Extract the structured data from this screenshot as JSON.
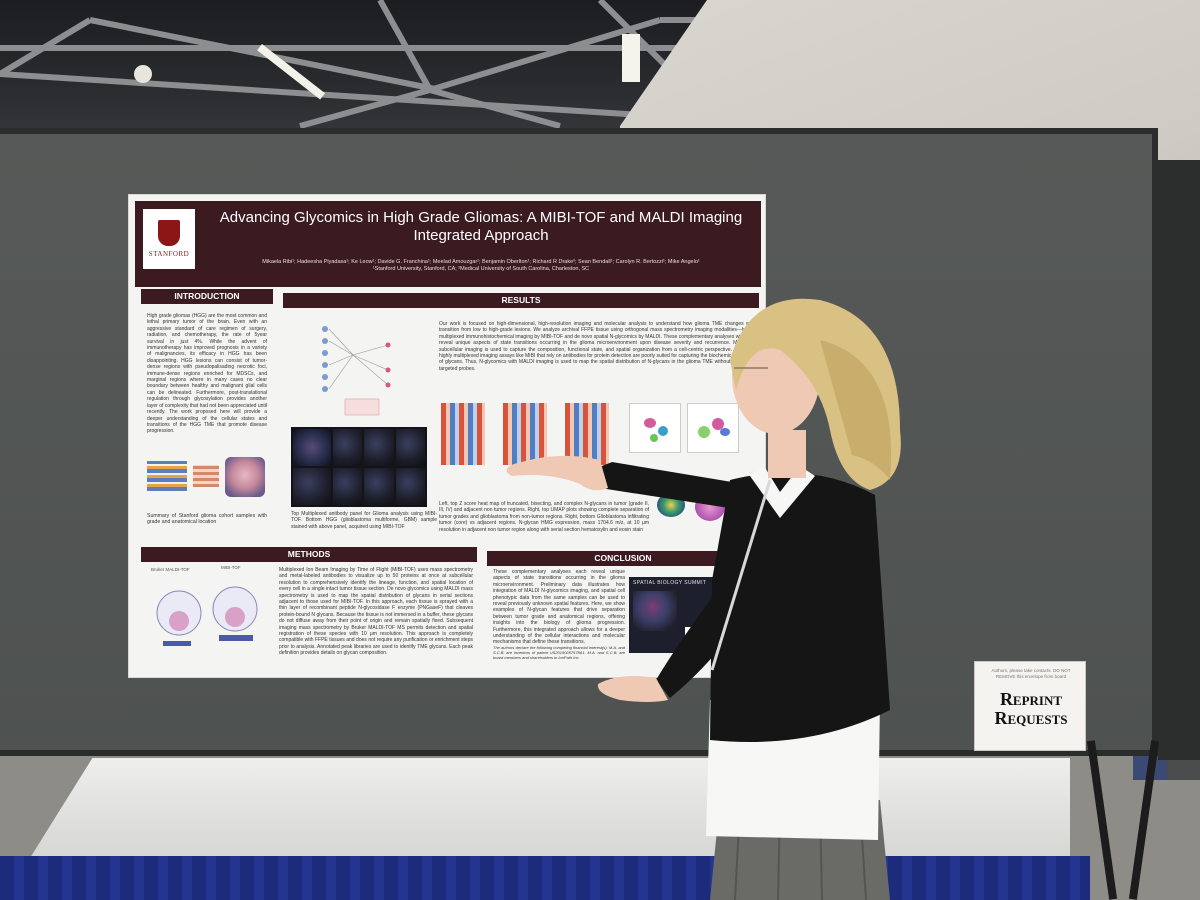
{
  "poster": {
    "title": "Advancing Glycomics in High Grade Gliomas: A MIBI-TOF and MALDI Imaging Integrated Approach",
    "authors": "Mikaela Ribi¹; Hadeesha Piyadasa¹; Ke Leow¹; Davide G. Franchina¹; Meelad Amouzgar¹; Benjamin Oberlton¹; Richard R Drake²; Sean Bendall¹; Carolyn R. Bertozzi¹; Mike Angelo¹",
    "affiliations": "¹Stanford University, Stanford, CA; ²Medical University of South Carolina, Charleston, SC",
    "logo_text": "STANFORD",
    "sections": {
      "introduction": "INTRODUCTION",
      "results": "RESULTS",
      "methods": "METHODS",
      "conclusion": "CONCLUSION"
    },
    "intro_text": "High grade gliomas (HGG) are the most common and lethal primary tumor of the brain. Even with an aggressive standard of care regimen of surgery, radiation, and chemotherapy, the rate of 5year survival in just 4%. While the advent of immunotherapy has improved prognosis in a variety of malignancies, its efficacy in HGG has been disappointing. HGG lesions can consist of tumor-dense regions with pseudopalisading necrotic foci, immune-dense regions enriched for MDSCs, and marginal regions where in many cases no clear boundary between healthy and malignant glial cells can be delineated. Furthermore, post-translational regulation through glycosylation provides another layer of complexity that had not been appreciated until recently. The work proposed here will provide a deeper understanding of the cellular states and transitions of the HGG TME that promote disease progression.",
    "intro_caption": "Summary of Stanford glioma cohort samples with grade and anatomical location",
    "results_text": "Our work is focused on high-dimensional, high-resolution imaging and molecular analysis to understand how glioma TME changes with transition from low to high-grade lesions. We analyze archival FFPE tissue using orthogonal mass spectrometry imaging modalities—highly multiplexed immunohistochemical imaging by MIBI-TOF and de novo spatial N-glycomics by MALDI. These complementary analyses will each reveal unique aspects of state transitions occurring in the glioma microenvironment upon disease severity and recurrence. MIBI-TOF subcellular imaging is used to capture the composition, functional state, and spatial organization from a cell-centric perspective. However, highly multiplexed imaging assays like MIBI that rely on antibodies for protein detection are poorly suited for capturing the biochemical diversity of glycans. Thus, N-glycomics with MALDI imaging is used to map the spatial distribution of N-glycans in the glioma TME without the use of targeted probes.",
    "results_caption_left": "Top Multiplexed antibody panel for Glioma analysis using MIBI-TOF. Bottom HGG (glioblastoma multiforme, GBM) sample stained with above panel, acquired using MIBI-TOF",
    "results_caption_right": "Left, top Z score heat map of truncated, bisecting, and complex N-glycans in tumor (grade II, III, IV) and adjacent non tumor regions. Right, top UMAP plots showing complete separation of tumor grades and glioblastoma from non-tumor regions. Right, bottom Glioblastoma infiltrating tumor (core) vs adjacent regions. N-glycan HMG expression, mass 1704.6 m/z, at 10 µm resolution in adjacent non tumor region along with serial section hematoxylin and eosin stain",
    "methods_text": "Multiplexed Ion Beam Imaging by Time of Flight (MIBI-TOF) uses mass spectrometry and metal-labeled antibodies to visualize up to 50 proteins at once at subcellular resolution to comprehensively identify the lineage, function, and spatial location of every cell in a single intact tumor tissue section. De novo glycomics using MALDI mass spectrometry is used to map the spatial distribution of glycans in serial sections adjacent to those used for MIBI-TOF. In this approach, each tissue is sprayed with a thin layer of recombinant peptide N-glycosidase F enzyme (PNGaseF) that cleaves protein-bound N glycans. Because the tissue is not immersed in a buffer, these glycans do not diffuse away from their point of origin and remain spatially fixed. Subsequent imaging mass spectrometry by Bruker MALDI-TOF MS permits detection and spatial registration of these species with 10 µm resolution. This approach is completely compatible with FFPE tissues and does not require any purification or enrichment steps prior to analysis. Annotated peak libraries are used to identify TME glycans. Each peak definition provides details on glycan composition.",
    "methods_labels": [
      "Bruker MALDI-TOF",
      "MIBI-TOF"
    ],
    "conclusion_text": "These complementary analyses each reveal unique aspects of state transitions occurring in the glioma microenvironment. Preliminary data illustrates how integration of MALDI N-glycomics imaging, and spatial cell phenotypic data from the same samples can be used to reveal previously unknown spatial features. Here, we show examples of N-glycan features that drive separation between tumor grade and anatomical regions, offering insights into the biology of glioma progression. Furthermore, this integrated approach allows for a deeper understanding of the cellular interactions and molecular mechanisms that define these transitions.",
    "disclosure_text": "The authors declare the following competing financial interest(s): M.A. and S.C.B. are inventors of patent US20150287578A1. M.A. and S.C.B. are board members and shareholders in IonPath Inc.",
    "summit_title": "SPATIAL BIOLOGY SUMMIT"
  },
  "reprint_box": {
    "note": "Authors, please take contacts. DO NOT REMOVE this envelope from board",
    "label": "Reprint Requests"
  },
  "colors": {
    "poster_header": "#3b1b20",
    "stanford_red": "#8c1515",
    "board": "#535654",
    "table_skirt": "#1f2e86"
  }
}
